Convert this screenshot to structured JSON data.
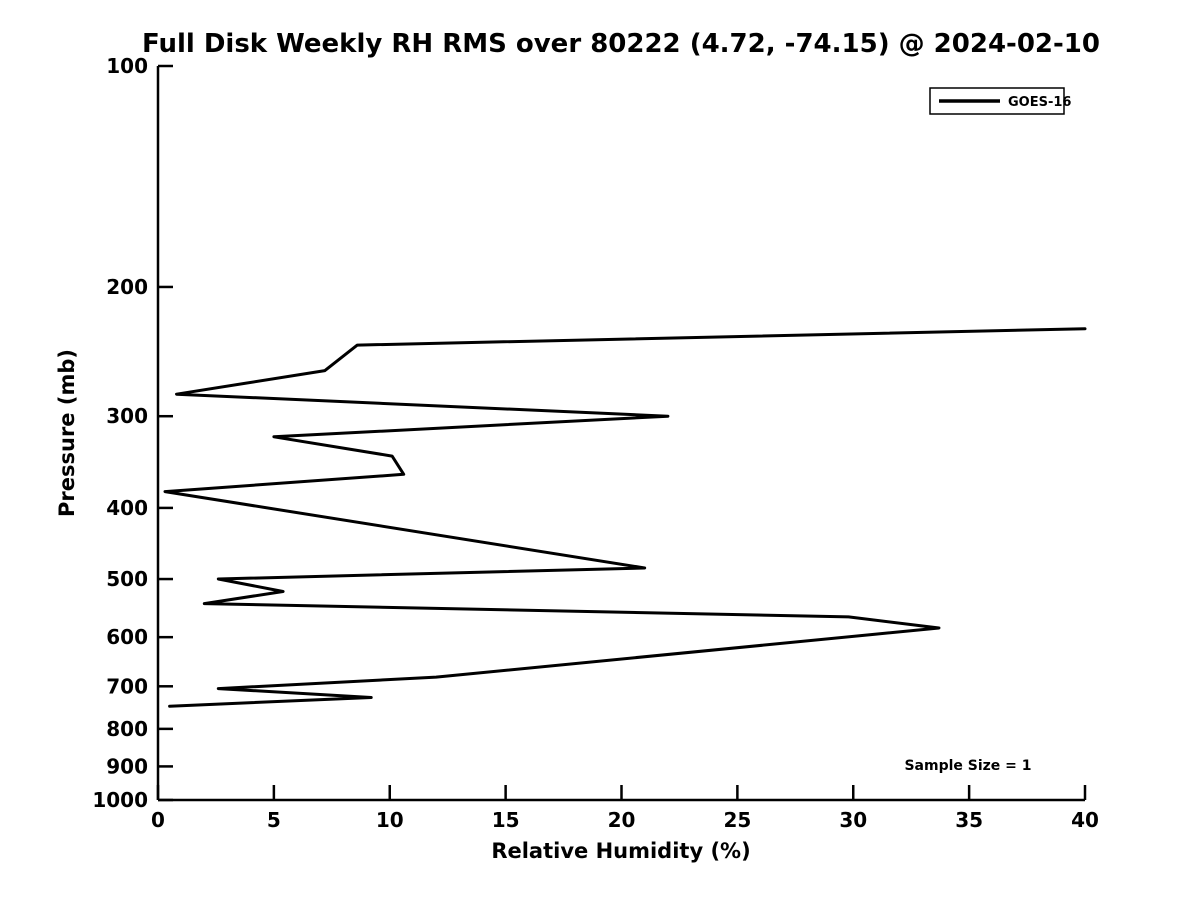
{
  "page": {
    "background_color": "#ffffff",
    "foreground_color": "#000000"
  },
  "chart_data": {
    "type": "line",
    "title": "Full Disk Weekly RH RMS over 80222 (4.72, -74.15) @ 2024-02-10",
    "xlabel": "Relative Humidity (%)",
    "ylabel": "Pressure (mb)",
    "xlim": [
      0,
      40
    ],
    "ylim": [
      100,
      1000
    ],
    "yscale": "log",
    "y_axis_inverted": true,
    "xticks": [
      0,
      5,
      10,
      15,
      20,
      25,
      30,
      35,
      40
    ],
    "yticks": [
      100,
      200,
      300,
      400,
      500,
      600,
      700,
      800,
      900,
      1000
    ],
    "grid": false,
    "legend": {
      "position": "upper right",
      "entries": [
        "GOES-16"
      ]
    },
    "annotations": [
      {
        "text": "Sample Size = 1",
        "position": "lower right inside plot"
      }
    ],
    "series": [
      {
        "name": "GOES-16",
        "color": "#000000",
        "points_format": "[relative_humidity_percent, pressure_mb]",
        "points": [
          [
            40.0,
            228
          ],
          [
            8.6,
            240
          ],
          [
            7.2,
            260
          ],
          [
            0.8,
            280
          ],
          [
            22.0,
            300
          ],
          [
            5.0,
            320
          ],
          [
            10.1,
            340
          ],
          [
            10.6,
            360
          ],
          [
            0.3,
            380
          ],
          [
            21.0,
            483
          ],
          [
            2.6,
            500
          ],
          [
            5.4,
            520
          ],
          [
            2.0,
            540
          ],
          [
            29.8,
            563
          ],
          [
            33.7,
            583
          ],
          [
            12.0,
            680
          ],
          [
            2.6,
            705
          ],
          [
            9.2,
            725
          ],
          [
            0.5,
            745
          ]
        ]
      }
    ]
  }
}
